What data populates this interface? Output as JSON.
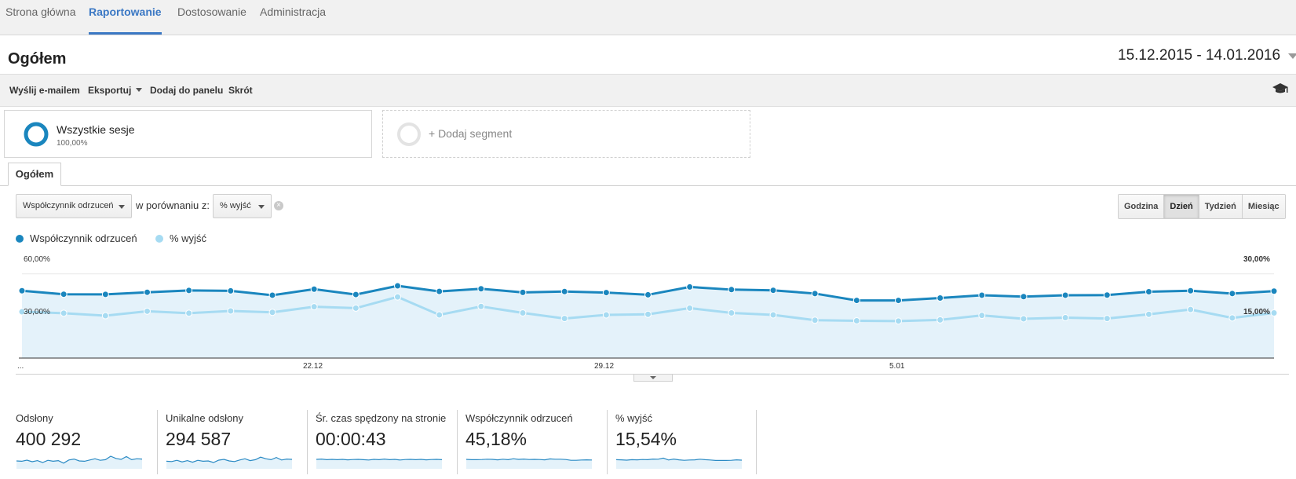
{
  "nav": {
    "tabs": [
      {
        "label": "Strona główna"
      },
      {
        "label": "Raportowanie"
      },
      {
        "label": "Dostosowanie"
      },
      {
        "label": "Administracja"
      }
    ],
    "active": "Raportowanie"
  },
  "header": {
    "title": "Ogółem",
    "date_range": "15.12.2015 - 14.01.2016"
  },
  "toolbar": {
    "email": "Wyślij e-mailem",
    "export": "Eksportuj",
    "add_to_panel": "Dodaj do panelu",
    "shortcut": "Skrót",
    "help_icon": "graduation-cap-icon"
  },
  "segments": {
    "all": {
      "name": "Wszystkie sesje",
      "pct": "100,00%"
    },
    "add": {
      "label": "+ Dodaj segment"
    }
  },
  "subtab": {
    "label": "Ogółem"
  },
  "controls": {
    "metric1": "Współczynnik odrzuceń",
    "compare_label": "w porównaniu z:",
    "metric2": "% wyjść",
    "periods": [
      "Godzina",
      "Dzień",
      "Tydzień",
      "Miesiąc"
    ],
    "active_period": "Dzień"
  },
  "colors": {
    "series1": "#1a86be",
    "series2": "#a6dbf2",
    "area": "#e4f2fa",
    "spark": "#2a8ac4"
  },
  "chart_data": {
    "type": "line",
    "x_start_label": "...",
    "x_ticks": [
      {
        "index": 7,
        "label": "22.12"
      },
      {
        "index": 14,
        "label": "29.12"
      },
      {
        "index": 21,
        "label": "5.01"
      }
    ],
    "left_axis": {
      "ticks": [
        "60,00%",
        "30,00%"
      ],
      "range": [
        0,
        75
      ]
    },
    "right_axis": {
      "ticks": [
        "30,00%",
        "15,00%"
      ],
      "range": [
        0,
        37.5
      ]
    },
    "series": [
      {
        "name": "Współczynnik odrzuceń",
        "axis": "left",
        "values": [
          48.0,
          45.5,
          45.4,
          46.9,
          48.2,
          47.9,
          44.8,
          49.1,
          45.3,
          51.5,
          47.5,
          49.4,
          46.8,
          47.4,
          46.7,
          45.1,
          50.7,
          48.8,
          48.3,
          46.0,
          41.1,
          41.1,
          42.8,
          44.8,
          43.8,
          44.8,
          44.9,
          47.3,
          48.0,
          46.0,
          47.7
        ]
      },
      {
        "name": "% wyjść",
        "axis": "right",
        "values": [
          16.5,
          16.0,
          15.1,
          16.7,
          16.0,
          16.8,
          16.3,
          18.3,
          17.8,
          21.8,
          15.4,
          18.4,
          16.1,
          14.1,
          15.4,
          15.6,
          17.8,
          16.1,
          15.4,
          13.5,
          13.3,
          13.2,
          13.6,
          15.2,
          14.0,
          14.4,
          14.1,
          15.6,
          17.3,
          14.3,
          16.1
        ]
      }
    ]
  },
  "metrics": [
    {
      "label": "Odsłony",
      "value": "400 292",
      "spark": [
        50,
        48,
        55,
        45,
        52,
        40,
        54,
        48,
        52,
        36,
        56,
        62,
        50,
        48,
        56,
        64,
        54,
        58,
        80,
        66,
        60,
        78,
        58,
        64,
        62
      ]
    },
    {
      "label": "Unikalne odsłony",
      "value": "294 587",
      "spark": [
        48,
        46,
        54,
        44,
        52,
        42,
        54,
        48,
        50,
        40,
        55,
        60,
        50,
        46,
        56,
        64,
        52,
        58,
        74,
        64,
        58,
        72,
        56,
        62,
        60
      ]
    },
    {
      "label": "Śr. czas spędzony na stronie",
      "value": "00:00:43",
      "spark": [
        60,
        62,
        58,
        60,
        58,
        60,
        57,
        59,
        60,
        58,
        56,
        60,
        58,
        62,
        58,
        60,
        56,
        59,
        60,
        58,
        60,
        57,
        59,
        60,
        58
      ]
    },
    {
      "label": "Współczynnik odrzuceń",
      "value": "45,18%",
      "spark": [
        60,
        58,
        58,
        59,
        61,
        60,
        57,
        61,
        58,
        64,
        60,
        62,
        59,
        60,
        59,
        57,
        63,
        61,
        61,
        59,
        54,
        54,
        56,
        57,
        56
      ]
    },
    {
      "label": "% wyjść",
      "value": "15,54%",
      "spark": [
        58,
        57,
        55,
        58,
        57,
        59,
        58,
        62,
        61,
        68,
        56,
        62,
        57,
        54,
        56,
        57,
        61,
        58,
        56,
        53,
        53,
        53,
        54,
        57,
        55
      ]
    }
  ]
}
